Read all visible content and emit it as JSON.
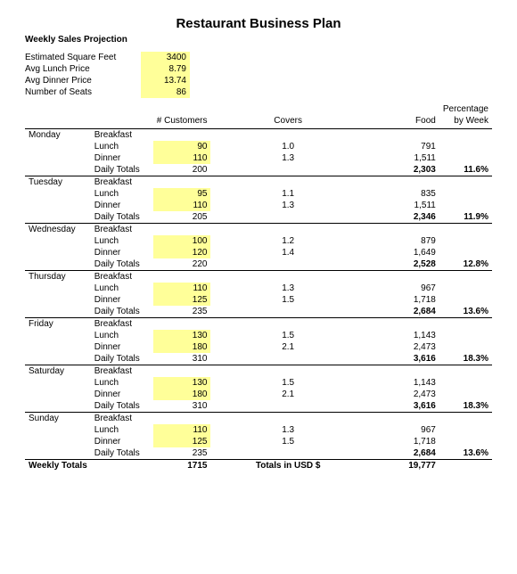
{
  "title": "Restaurant Business Plan",
  "subtitle": "Weekly Sales Projection",
  "params": [
    {
      "label": "Estimated Square Feet",
      "value": "3400"
    },
    {
      "label": "Avg Lunch Price",
      "value": "8.79"
    },
    {
      "label": "Avg Dinner Price",
      "value": "13.74"
    },
    {
      "label": "Number of Seats",
      "value": "86"
    }
  ],
  "columns": {
    "customers": "# Customers",
    "covers": "Covers",
    "food": "Food",
    "pct1": "Percentage",
    "pct2": "by Week"
  },
  "days": [
    {
      "name": "Monday",
      "rows": [
        {
          "meal": "Breakfast",
          "cust": "",
          "cov": "",
          "food": ""
        },
        {
          "meal": "Lunch",
          "cust": "90",
          "hl": true,
          "cov": "1.0",
          "food": "791"
        },
        {
          "meal": "Dinner",
          "cust": "110",
          "hl": true,
          "cov": "1.3",
          "food": "1,511"
        },
        {
          "meal": "Daily Totals",
          "cust": "200",
          "cov": "",
          "food": "2,303",
          "bold": true,
          "pct": "11.6%"
        }
      ]
    },
    {
      "name": "Tuesday",
      "rows": [
        {
          "meal": "Breakfast",
          "cust": "",
          "cov": "",
          "food": ""
        },
        {
          "meal": "Lunch",
          "cust": "95",
          "hl": true,
          "cov": "1.1",
          "food": "835"
        },
        {
          "meal": "Dinner",
          "cust": "110",
          "hl": true,
          "cov": "1.3",
          "food": "1,511"
        },
        {
          "meal": "Daily Totals",
          "cust": "205",
          "cov": "",
          "food": "2,346",
          "bold": true,
          "pct": "11.9%"
        }
      ]
    },
    {
      "name": "Wednesday",
      "rows": [
        {
          "meal": "Breakfast",
          "cust": "",
          "cov": "",
          "food": ""
        },
        {
          "meal": "Lunch",
          "cust": "100",
          "hl": true,
          "cov": "1.2",
          "food": "879"
        },
        {
          "meal": "Dinner",
          "cust": "120",
          "hl": true,
          "cov": "1.4",
          "food": "1,649"
        },
        {
          "meal": "Daily Totals",
          "cust": "220",
          "cov": "",
          "food": "2,528",
          "bold": true,
          "pct": "12.8%"
        }
      ]
    },
    {
      "name": "Thursday",
      "rows": [
        {
          "meal": "Breakfast",
          "cust": "",
          "cov": "",
          "food": ""
        },
        {
          "meal": "Lunch",
          "cust": "110",
          "hl": true,
          "cov": "1.3",
          "food": "967"
        },
        {
          "meal": "Dinner",
          "cust": "125",
          "hl": true,
          "cov": "1.5",
          "food": "1,718"
        },
        {
          "meal": "Daily Totals",
          "cust": "235",
          "cov": "",
          "food": "2,684",
          "bold": true,
          "pct": "13.6%"
        }
      ]
    },
    {
      "name": "Friday",
      "rows": [
        {
          "meal": "Breakfast",
          "cust": "",
          "cov": "",
          "food": ""
        },
        {
          "meal": "Lunch",
          "cust": "130",
          "hl": true,
          "cov": "1.5",
          "food": "1,143"
        },
        {
          "meal": "Dinner",
          "cust": "180",
          "hl": true,
          "cov": "2.1",
          "food": "2,473"
        },
        {
          "meal": "Daily Totals",
          "cust": "310",
          "cov": "",
          "food": "3,616",
          "bold": true,
          "pct": "18.3%"
        }
      ]
    },
    {
      "name": "Saturday",
      "rows": [
        {
          "meal": "Breakfast",
          "cust": "",
          "cov": "",
          "food": ""
        },
        {
          "meal": "Lunch",
          "cust": "130",
          "hl": true,
          "cov": "1.5",
          "food": "1,143"
        },
        {
          "meal": "Dinner",
          "cust": "180",
          "hl": true,
          "cov": "2.1",
          "food": "2,473"
        },
        {
          "meal": "Daily Totals",
          "cust": "310",
          "cov": "",
          "food": "3,616",
          "bold": true,
          "pct": "18.3%"
        }
      ]
    },
    {
      "name": "Sunday",
      "rows": [
        {
          "meal": "Breakfast",
          "cust": "",
          "cov": "",
          "food": ""
        },
        {
          "meal": "Lunch",
          "cust": "110",
          "hl": true,
          "cov": "1.3",
          "food": "967"
        },
        {
          "meal": "Dinner",
          "cust": "125",
          "hl": true,
          "cov": "1.5",
          "food": "1,718"
        },
        {
          "meal": "Daily Totals",
          "cust": "235",
          "cov": "",
          "food": "2,684",
          "bold": true,
          "pct": "13.6%"
        }
      ]
    }
  ],
  "footer": {
    "label": "Weekly Totals",
    "customers": "1715",
    "covers_label": "Totals in USD $",
    "food": "19,777"
  },
  "styling": {
    "highlight_color": "#ffff99",
    "font_family": "Arial",
    "title_fontsize": 15,
    "body_fontsize": 10,
    "border_color": "#000000",
    "background_color": "#ffffff"
  }
}
